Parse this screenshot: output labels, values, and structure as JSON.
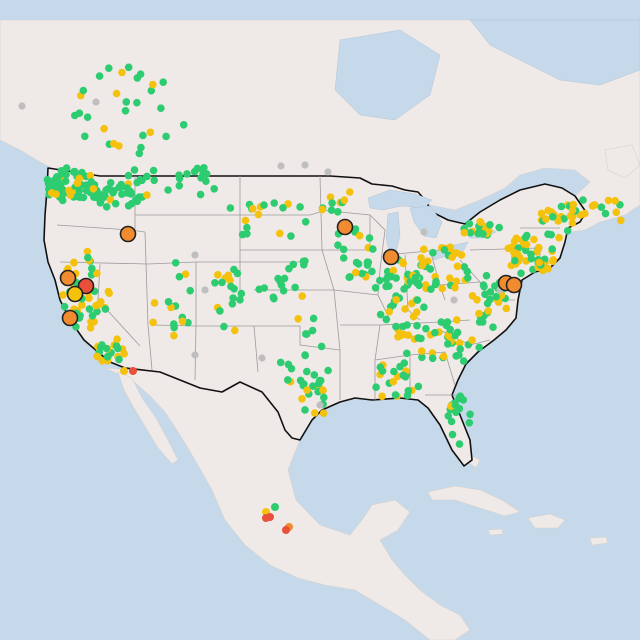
{
  "map": {
    "colors": {
      "ocean": "#c5d9ea",
      "land": "#efe9e7",
      "country_border": "#111111",
      "state_border": "#9c9c9c",
      "good": "#2ecc71",
      "moderate": "#f4c20d",
      "usg": "#f08c2f",
      "unhealthy": "#e8503a",
      "no_data": "#bfbfbf",
      "marker_outline": "#222222"
    },
    "marker_categories": [
      "good",
      "moderate",
      "usg",
      "unhealthy",
      "no_data"
    ],
    "large_marker_categories": [
      "usg",
      "unhealthy",
      "moderate"
    ]
  }
}
